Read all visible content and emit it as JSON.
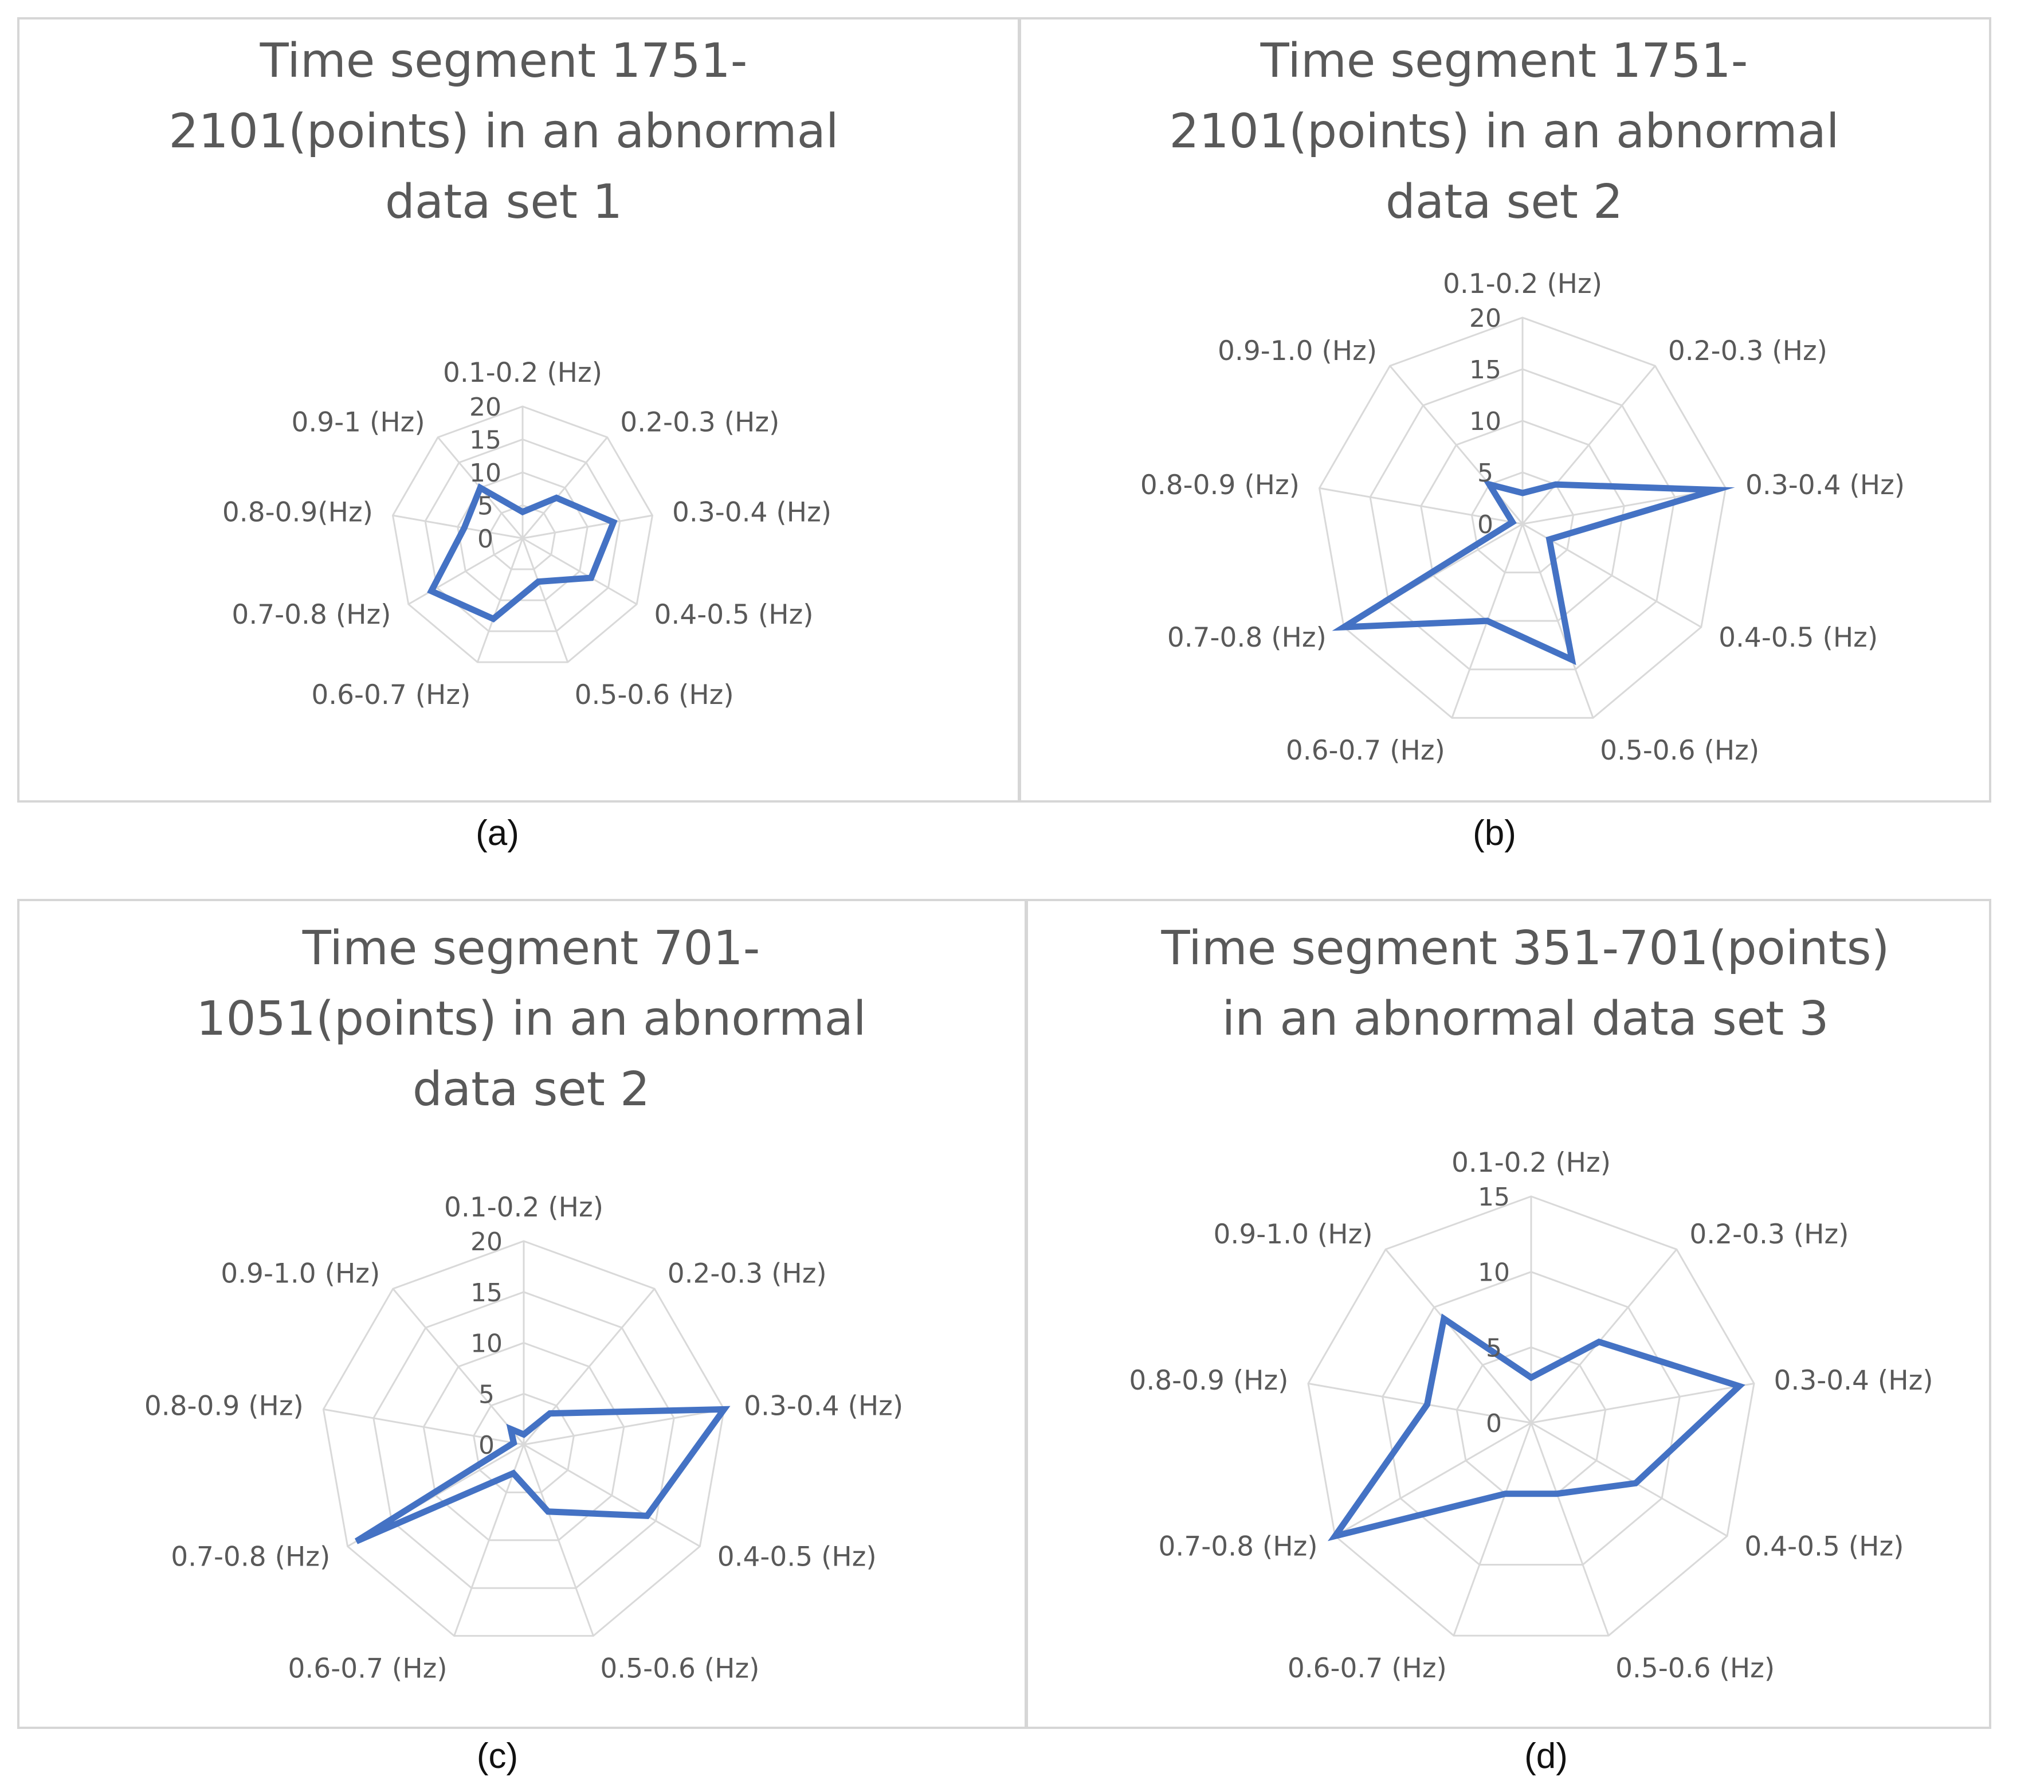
{
  "series_color": "#4472C4",
  "grid_color": "#d9d9d9",
  "chart_data": [
    {
      "type": "radar",
      "title": "Time segment 1751-2101(points) in an abnormal data set 1",
      "title_lines": [
        "Time segment 1751-",
        "2101(points) in an abnormal",
        "data set 1"
      ],
      "caption": "(a)",
      "categories": [
        "0.1-0.2 (Hz)",
        "0.2-0.3 (Hz)",
        "0.3-0.4 (Hz)",
        "0.4-0.5 (Hz)",
        "0.5-0.6 (Hz)",
        "0.6-0.7 (Hz)",
        "0.7-0.8 (Hz)",
        "0.8-0.9(Hz)",
        "0.9-1 (Hz)"
      ],
      "values": [
        4,
        8,
        14,
        12,
        7,
        13,
        16,
        9,
        10
      ],
      "rmax": 20,
      "ticks": [
        "0",
        "5",
        "10",
        "15",
        "20"
      ]
    },
    {
      "type": "radar",
      "title": "Time segment 1751-2101(points) in an abnormal data set 2",
      "title_lines": [
        "Time segment 1751-",
        "2101(points) in an abnormal",
        "data set 2"
      ],
      "caption": "(b)",
      "categories": [
        "0.1-0.2 (Hz)",
        "0.2-0.3 (Hz)",
        "0.3-0.4 (Hz)",
        "0.4-0.5 (Hz)",
        "0.5-0.6 (Hz)",
        "0.6-0.7 (Hz)",
        "0.7-0.8 (Hz)",
        "0.8-0.9 (Hz)",
        "0.9-1.0 (Hz)"
      ],
      "values": [
        3,
        5,
        19,
        3,
        14,
        10,
        20,
        1,
        5
      ],
      "rmax": 20,
      "ticks": [
        "0",
        "5",
        "10",
        "15",
        "20"
      ]
    },
    {
      "type": "radar",
      "title": "Time segment 701-1051(points) in an abnormal data set 2",
      "title_lines": [
        "Time segment 701-",
        "1051(points) in an abnormal",
        "data set 2"
      ],
      "caption": "(c)",
      "categories": [
        "0.1-0.2 (Hz)",
        "0.2-0.3 (Hz)",
        "0.3-0.4 (Hz)",
        "0.4-0.5 (Hz)",
        "0.5-0.6 (Hz)",
        "0.6-0.7 (Hz)",
        "0.7-0.8 (Hz)",
        "0.8-0.9 (Hz)",
        "0.9-1.0 (Hz)"
      ],
      "values": [
        1,
        4,
        20,
        14,
        7,
        3,
        19,
        1,
        2
      ],
      "rmax": 20,
      "ticks": [
        "0",
        "5",
        "10",
        "15",
        "20"
      ]
    },
    {
      "type": "radar",
      "title": "Time segment 351-701(points) in an abnormal data set 3",
      "title_lines": [
        "Time segment 351-701(points)",
        "in an abnormal data set 3"
      ],
      "caption": "(d)",
      "categories": [
        "0.1-0.2 (Hz)",
        "0.2-0.3 (Hz)",
        "0.3-0.4 (Hz)",
        "0.4-0.5 (Hz)",
        "0.5-0.6 (Hz)",
        "0.6-0.7 (Hz)",
        "0.7-0.8 (Hz)",
        "0.8-0.9 (Hz)",
        "0.9-1.0 (Hz)"
      ],
      "values": [
        3,
        7,
        14,
        8,
        5,
        5,
        15,
        7,
        9
      ],
      "rmax": 15,
      "ticks": [
        "0",
        "5",
        "10",
        "15"
      ]
    }
  ]
}
